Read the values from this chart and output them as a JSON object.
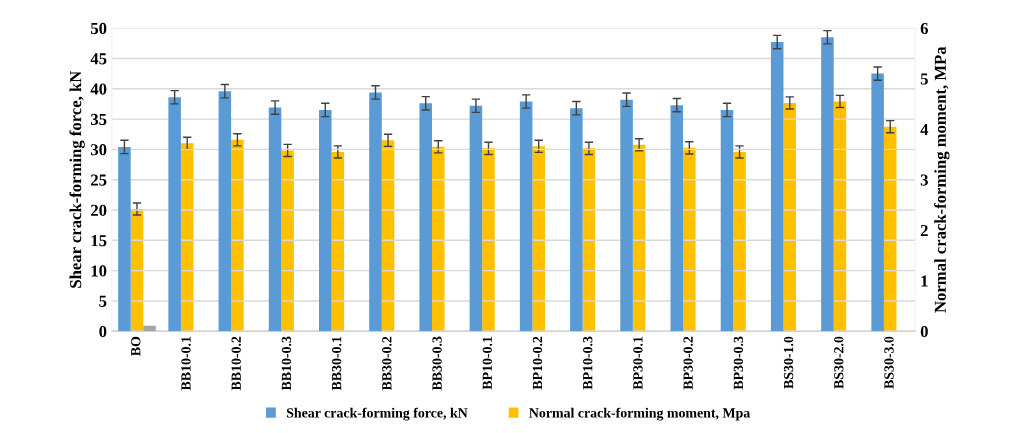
{
  "chart_data": {
    "type": "bar",
    "categories": [
      "BO",
      "BB10-0.1",
      "BB10-0.2",
      "BB10-0.3",
      "BB30-0.1",
      "BB30-0.2",
      "BB30-0.3",
      "BP10-0.1",
      "BP10-0.2",
      "BP10-0.3",
      "BP30-0.1",
      "BP30-0.2",
      "BP30-0.3",
      "BS30-1.0",
      "BS30-2.0",
      "BS30-3.0"
    ],
    "series": [
      {
        "name": "Shear crack-forming force, kN",
        "color": "#5b9bd5",
        "values": [
          30.4,
          38.6,
          39.6,
          36.9,
          36.5,
          39.4,
          37.6,
          37.2,
          37.9,
          36.8,
          38.2,
          37.3,
          36.5,
          47.7,
          48.5,
          42.5
        ],
        "errors": [
          1.1,
          1.1,
          1.1,
          1.1,
          1.1,
          1.1,
          1.1,
          1.1,
          1.1,
          1.1,
          1.1,
          1.1,
          1.1,
          1.1,
          1.1,
          1.1
        ]
      },
      {
        "name": "Normal crack-forming moment, Mpa",
        "color": "#ffc000",
        "axis": "y2",
        "values": [
          2.42,
          3.72,
          3.79,
          3.58,
          3.55,
          3.78,
          3.65,
          3.62,
          3.66,
          3.62,
          3.69,
          3.63,
          3.55,
          4.52,
          4.55,
          4.05
        ],
        "errors": [
          0.12,
          0.12,
          0.12,
          0.12,
          0.12,
          0.12,
          0.12,
          0.12,
          0.12,
          0.12,
          0.12,
          0.12,
          0.12,
          0.12,
          0.12,
          0.12
        ]
      },
      {
        "color": "#a5a5a5",
        "values": [
          0.9,
          null,
          null,
          null,
          null,
          null,
          null,
          null,
          null,
          null,
          null,
          null,
          null,
          null,
          null,
          null
        ]
      }
    ],
    "ylabel": "Shear crack-forming force, kN",
    "y2label": "Normal crack-forming moment, MPa",
    "ylim": [
      0,
      50
    ],
    "yticks": [
      0,
      5,
      10,
      15,
      20,
      25,
      30,
      35,
      40,
      45,
      50
    ],
    "y2lim": [
      0,
      6
    ],
    "y2ticks": [
      0,
      1,
      2,
      3,
      4,
      5,
      6
    ],
    "grid": "y",
    "legend": "bottom"
  }
}
